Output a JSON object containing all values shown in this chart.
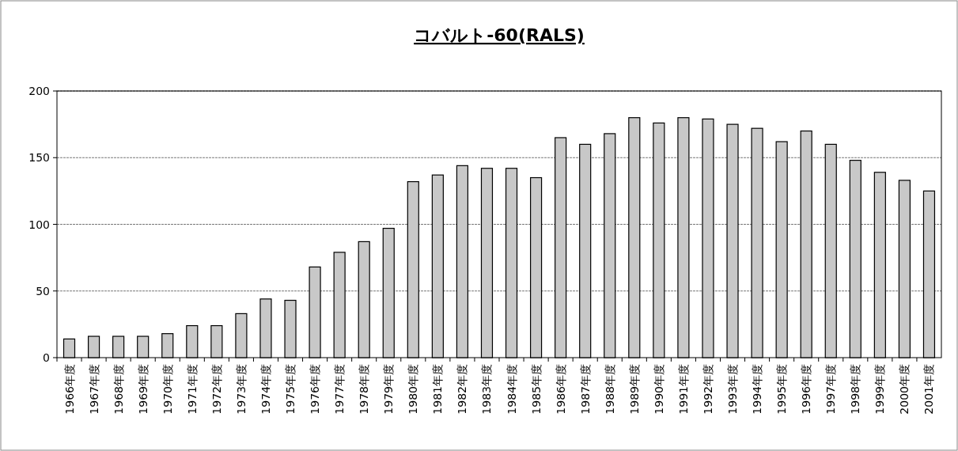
{
  "chart_data": {
    "type": "bar",
    "title": "コバルト-60(RALS)",
    "categories": [
      "1966年度",
      "1967年度",
      "1968年度",
      "1969年度",
      "1970年度",
      "1971年度",
      "1972年度",
      "1973年度",
      "1974年度",
      "1975年度",
      "1976年度",
      "1977年度",
      "1978年度",
      "1979年度",
      "1980年度",
      "1981年度",
      "1982年度",
      "1983年度",
      "1984年度",
      "1985年度",
      "1986年度",
      "1987年度",
      "1988年度",
      "1989年度",
      "1990年度",
      "1991年度",
      "1992年度",
      "1993年度",
      "1994年度",
      "1995年度",
      "1996年度",
      "1997年度",
      "1998年度",
      "1999年度",
      "2000年度",
      "2001年度"
    ],
    "values": [
      14,
      16,
      16,
      16,
      18,
      24,
      24,
      33,
      44,
      43,
      68,
      79,
      87,
      97,
      132,
      137,
      144,
      142,
      142,
      135,
      165,
      160,
      168,
      180,
      176,
      180,
      179,
      175,
      172,
      162,
      170,
      160,
      148,
      139,
      133,
      125
    ],
    "color": "#c8c8c8",
    "ylim": [
      0,
      200
    ],
    "yticks": [
      0,
      50,
      100,
      150,
      200
    ],
    "grid": "y"
  }
}
